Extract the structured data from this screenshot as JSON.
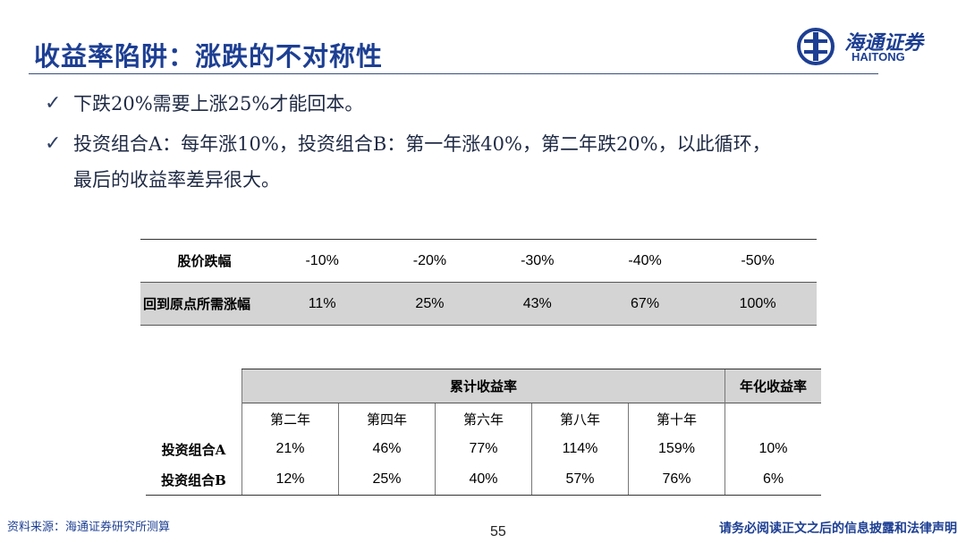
{
  "title": "收益率陷阱：涨跌的不对称性",
  "logo": {
    "name_cn": "海通证券",
    "name_en": "HAITONG"
  },
  "bullets": [
    "下跌20%需要上涨25%才能回本。",
    "投资组合A：每年涨10%，投资组合B：第一年涨40%，第二年跌20%，以此循环，",
    "最后的收益率差异很大。"
  ],
  "table1": {
    "row1_label": "股价跌幅",
    "row1": [
      "-10%",
      "-20%",
      "-30%",
      "-40%",
      "-50%"
    ],
    "row2_label": "回到原点所需涨幅",
    "row2": [
      "11%",
      "25%",
      "43%",
      "67%",
      "100%"
    ]
  },
  "table2": {
    "group_header": "累计收益率",
    "annual_header": "年化收益率",
    "years": [
      "第二年",
      "第四年",
      "第六年",
      "第八年",
      "第十年"
    ],
    "rows": [
      {
        "name": "投资组合A",
        "values": [
          "21%",
          "46%",
          "77%",
          "114%",
          "159%"
        ],
        "annual": "10%"
      },
      {
        "name": "投资组合B",
        "values": [
          "12%",
          "25%",
          "40%",
          "57%",
          "76%"
        ],
        "annual": "6%"
      }
    ]
  },
  "footer": {
    "source": "资料来源：海通证券研究所测算",
    "page": "55",
    "disclaimer": "请务必阅读正文之后的信息披露和法律声明"
  },
  "colors": {
    "title": "#1d3f93",
    "shade": "#d4d4d4"
  }
}
